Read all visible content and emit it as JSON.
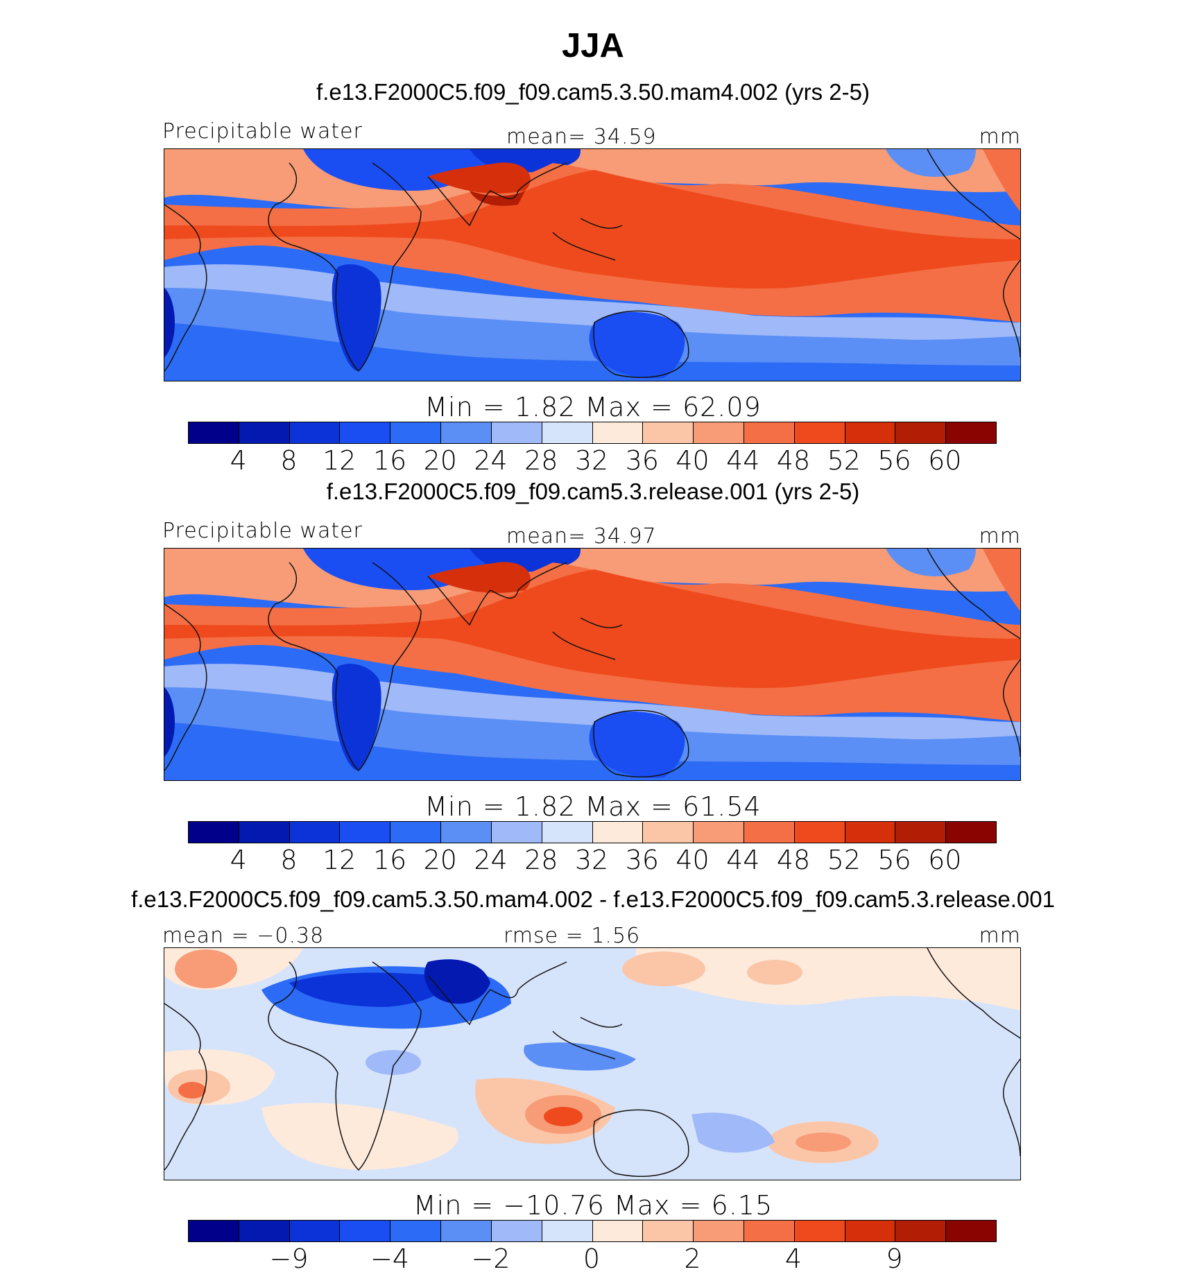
{
  "season": "JJA",
  "colors": {
    "precip": [
      "#01008b",
      "#0319b0",
      "#0b33d8",
      "#1a4ef3",
      "#2c6bf5",
      "#5b8ff5",
      "#9fb9f9",
      "#d6e4fb",
      "#fdeadb",
      "#fbc6a8",
      "#f79c76",
      "#f46f45",
      "#ee4a1d",
      "#d62f0b",
      "#b11d05",
      "#8a0502"
    ],
    "diff": [
      "#01008b",
      "#0319b0",
      "#0b33d8",
      "#1a4ef3",
      "#2c6bf5",
      "#5b8ff5",
      "#9fb9f9",
      "#d6e4fb",
      "#fdeadb",
      "#fbc6a8",
      "#f79c76",
      "#f46f45",
      "#ee4a1d",
      "#d62f0b",
      "#b11d05",
      "#8a0502"
    ]
  },
  "panels": [
    {
      "title": "f.e13.F2000C5.f09_f09.cam5.3.50.mam4.002 (yrs 2-5)",
      "left_label": "Precipitable  water",
      "center_label": "mean=   34.59",
      "units": "mm",
      "minmax": "Min  =     1.82  Max  =    62.09",
      "colorbar_ticks": [
        "4",
        "8",
        "12",
        "16",
        "20",
        "24",
        "28",
        "32",
        "36",
        "40",
        "44",
        "48",
        "52",
        "56",
        "60"
      ]
    },
    {
      "title": "f.e13.F2000C5.f09_f09.cam5.3.release.001 (yrs 2-5)",
      "left_label": "Precipitable  water",
      "center_label": "mean=   34.97",
      "units": "mm",
      "minmax": "Min  =     1.82  Max  =    61.54",
      "colorbar_ticks": [
        "4",
        "8",
        "12",
        "16",
        "20",
        "24",
        "28",
        "32",
        "36",
        "40",
        "44",
        "48",
        "52",
        "56",
        "60"
      ]
    },
    {
      "title": "f.e13.F2000C5.f09_f09.cam5.3.50.mam4.002 - f.e13.F2000C5.f09_f09.cam5.3.release.001",
      "left_label": "mean  =   −0.38",
      "center_label": "rmse  =     1.56",
      "units": "mm",
      "minmax": "Min  =  −10.76  Max  =     6.15",
      "colorbar_ticks": [
        "−9",
        "−4",
        "−2",
        "0",
        "2",
        "4",
        "9"
      ]
    }
  ],
  "chart_data": [
    {
      "type": "heatmap",
      "title": "f.e13.F2000C5.f09_f09.cam5.3.50.mam4.002 (yrs 2-5)",
      "variable": "Precipitable water",
      "units": "mm",
      "mean": 34.59,
      "min": 1.82,
      "max": 62.09,
      "contour_levels": [
        4,
        8,
        12,
        16,
        20,
        24,
        28,
        32,
        36,
        40,
        44,
        48,
        52,
        56,
        60
      ]
    },
    {
      "type": "heatmap",
      "title": "f.e13.F2000C5.f09_f09.cam5.3.release.001 (yrs 2-5)",
      "variable": "Precipitable water",
      "units": "mm",
      "mean": 34.97,
      "min": 1.82,
      "max": 61.54,
      "contour_levels": [
        4,
        8,
        12,
        16,
        20,
        24,
        28,
        32,
        36,
        40,
        44,
        48,
        52,
        56,
        60
      ]
    },
    {
      "type": "heatmap",
      "title": "f.e13.F2000C5.f09_f09.cam5.3.50.mam4.002 - f.e13.F2000C5.f09_f09.cam5.3.release.001",
      "variable": "Precipitable water difference",
      "units": "mm",
      "mean": -0.38,
      "rmse": 1.56,
      "min": -10.76,
      "max": 6.15,
      "contour_levels": [
        -9,
        -4,
        -2,
        0,
        2,
        4,
        9
      ]
    }
  ]
}
